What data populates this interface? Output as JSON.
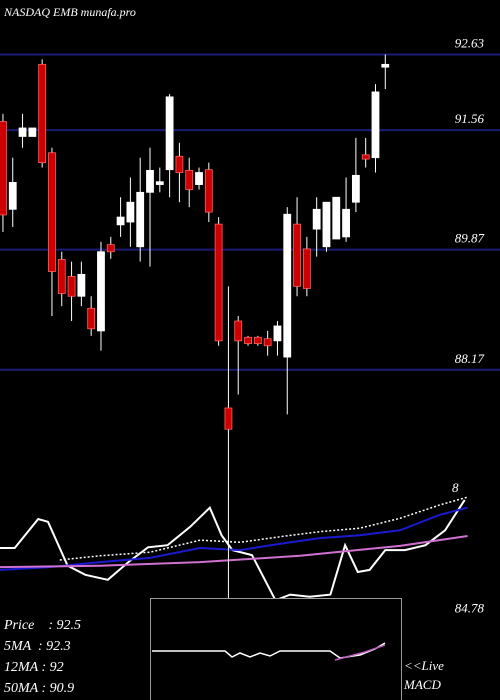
{
  "chart_data": [
    {
      "type": "candlestick",
      "title": "NASDAQ EMB munafa.pro",
      "up_color": "#ffffff",
      "down_color": "#cc0000",
      "grid_color": "#1c1c78",
      "xlim": [
        -0.3,
        50.7
      ],
      "ylim": [
        83.5,
        93.4
      ],
      "yticks": [
        92.63,
        91.56,
        89.87,
        88.17
      ],
      "grid": true,
      "ohlc": [
        [
          91.68,
          91.79,
          90.12,
          90.36
        ],
        [
          90.44,
          91.17,
          90.19,
          90.82
        ],
        [
          91.47,
          91.79,
          91.31,
          91.59
        ],
        [
          91.47,
          91.59,
          91.47,
          91.59
        ],
        [
          92.49,
          92.56,
          91.03,
          91.1
        ],
        [
          91.24,
          91.31,
          88.93,
          89.56
        ],
        [
          89.73,
          89.84,
          89.07,
          89.25
        ],
        [
          89.49,
          89.7,
          88.86,
          89.21
        ],
        [
          89.21,
          89.7,
          89.07,
          89.52
        ],
        [
          89.04,
          89.21,
          88.65,
          88.75
        ],
        [
          88.72,
          89.98,
          88.44,
          89.84
        ],
        [
          89.94,
          90.05,
          89.74,
          89.84
        ],
        [
          90.22,
          90.61,
          90.05,
          90.33
        ],
        [
          90.26,
          90.89,
          89.91,
          90.54
        ],
        [
          89.91,
          91.17,
          89.7,
          90.68
        ],
        [
          90.68,
          91.31,
          89.63,
          90.99
        ],
        [
          90.79,
          91.03,
          90.68,
          90.83
        ],
        [
          91.0,
          92.07,
          90.61,
          92.03
        ],
        [
          91.19,
          91.38,
          90.54,
          90.96
        ],
        [
          90.99,
          91.17,
          90.47,
          90.72
        ],
        [
          90.79,
          91.03,
          90.72,
          90.96
        ],
        [
          91.0,
          91.1,
          90.26,
          90.4
        ],
        [
          90.23,
          90.33,
          88.51,
          88.58
        ],
        [
          87.63,
          89.35,
          84.9,
          87.33
        ],
        [
          88.86,
          88.93,
          87.82,
          88.58
        ],
        [
          88.63,
          88.65,
          88.51,
          88.54
        ],
        [
          88.63,
          88.65,
          88.51,
          88.54
        ],
        [
          88.61,
          88.72,
          88.37,
          88.51
        ],
        [
          88.58,
          88.86,
          88.37,
          88.79
        ],
        [
          88.35,
          90.47,
          87.54,
          90.37
        ],
        [
          90.23,
          90.61,
          89.21,
          89.35
        ],
        [
          89.88,
          90.05,
          89.21,
          89.32
        ],
        [
          90.16,
          90.61,
          89.77,
          90.44
        ],
        [
          89.91,
          90.54,
          89.84,
          90.54
        ],
        [
          90.02,
          90.61,
          90.02,
          90.61
        ],
        [
          90.05,
          90.89,
          89.98,
          90.44
        ],
        [
          90.54,
          91.45,
          90.4,
          90.92
        ],
        [
          91.21,
          91.45,
          91.03,
          91.15
        ],
        [
          91.17,
          92.21,
          90.96,
          92.1
        ],
        [
          92.45,
          92.63,
          92.14,
          92.49
        ]
      ]
    },
    {
      "type": "line",
      "annotation": "8",
      "xlim": [
        -0.3,
        50.7
      ],
      "ylim": [
        83.5,
        93.4
      ],
      "yticks": [
        84.78
      ],
      "grid": false,
      "series": [
        {
          "color": "#ffffff",
          "dash": false,
          "x": [
            -0.3,
            1.2,
            3.6,
            4.6,
            6.6,
            8.4,
            10.7,
            12.8,
            14.8,
            16.8,
            19.1,
            21.1,
            22.3,
            23.4,
            25.4,
            27.8,
            29.3,
            31.3,
            33.4,
            34.9,
            36.2,
            37.4,
            39.0,
            41.0,
            43.1,
            45.1,
            47.1
          ],
          "values": [
            85.65,
            85.65,
            86.06,
            86.02,
            85.4,
            85.27,
            85.2,
            85.45,
            85.66,
            85.69,
            85.95,
            86.22,
            85.83,
            85.62,
            85.55,
            84.91,
            84.99,
            84.96,
            84.99,
            85.69,
            85.31,
            85.34,
            85.62,
            85.62,
            85.69,
            85.9,
            86.33
          ]
        },
        {
          "color": "#1a1ad0",
          "dash": false,
          "x": [
            -0.3,
            4.8,
            9.9,
            15.0,
            20.1,
            24.2,
            28.3,
            32.3,
            36.4,
            40.5,
            44.6,
            47.4
          ],
          "values": [
            85.34,
            85.38,
            85.45,
            85.51,
            85.65,
            85.62,
            85.71,
            85.79,
            85.83,
            85.9,
            86.12,
            86.22
          ]
        },
        {
          "color": "#d070d0",
          "dash": false,
          "x": [
            -0.3,
            9.9,
            20.1,
            30.3,
            40.5,
            47.4
          ],
          "values": [
            85.38,
            85.4,
            85.45,
            85.54,
            85.68,
            85.82
          ]
        },
        {
          "color": "#ffffff",
          "dash": true,
          "x": [
            5.8,
            9.9,
            15.0,
            20.1,
            24.2,
            28.3,
            32.3,
            36.4,
            40.5,
            44.6,
            47.4
          ],
          "values": [
            85.48,
            85.54,
            85.59,
            85.76,
            85.73,
            85.81,
            85.88,
            85.93,
            86.07,
            86.26,
            86.37
          ]
        }
      ]
    },
    {
      "type": "info",
      "lines": [
        "Price    : 92.5",
        "5MA  : 92.3",
        "12MA : 92",
        "50MA : 90.9"
      ],
      "macd_link": [
        "<<Live",
        "MACD"
      ]
    }
  ]
}
